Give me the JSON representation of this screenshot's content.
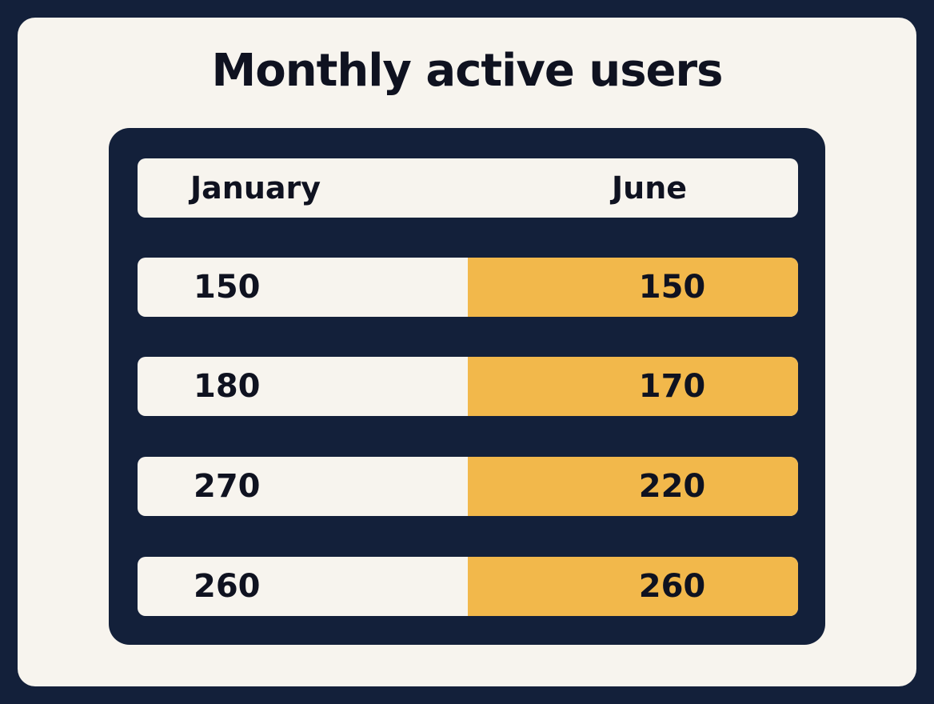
{
  "title": "Monthly active users",
  "table": {
    "header": [
      "January",
      "June"
    ],
    "rows": [
      [
        150,
        150
      ],
      [
        180,
        170
      ],
      [
        270,
        220
      ],
      [
        260,
        260
      ]
    ]
  }
}
